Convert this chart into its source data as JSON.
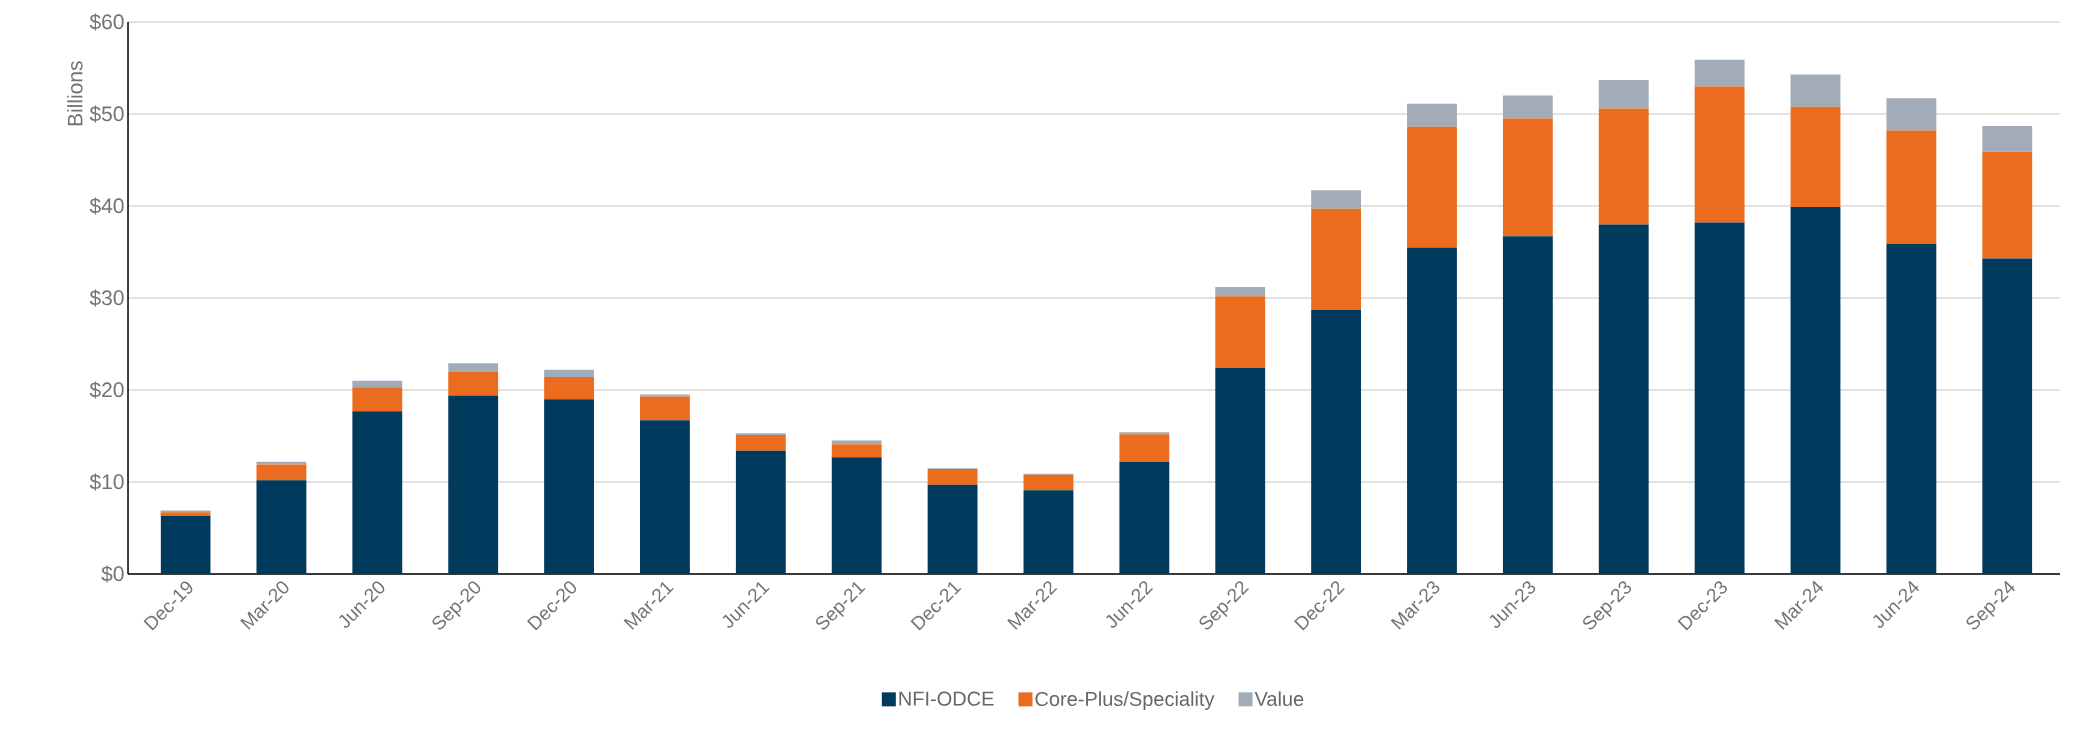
{
  "chart_data": {
    "type": "bar",
    "stacked": true,
    "ylabel": "Billions",
    "categories": [
      "Dec-19",
      "Mar-20",
      "Jun-20",
      "Sep-20",
      "Dec-20",
      "Mar-21",
      "Jun-21",
      "Sep-21",
      "Dec-21",
      "Mar-22",
      "Jun-22",
      "Sep-22",
      "Dec-22",
      "Mar-23",
      "Jun-23",
      "Sep-23",
      "Dec-23",
      "Mar-24",
      "Jun-24",
      "Sep-24"
    ],
    "series": [
      {
        "name": "NFI-ODCE",
        "color": "#003a5d",
        "values": [
          6.3,
          10.2,
          17.7,
          19.4,
          19.0,
          16.7,
          13.4,
          12.7,
          9.7,
          9.1,
          12.2,
          22.4,
          28.7,
          35.5,
          36.7,
          38.0,
          38.2,
          39.9,
          35.9,
          34.3
        ]
      },
      {
        "name": "Core-Plus/Speciality",
        "color": "#eb6b1f",
        "values": [
          0.4,
          1.7,
          2.6,
          2.6,
          2.4,
          2.6,
          1.7,
          1.4,
          1.7,
          1.7,
          3.0,
          7.8,
          11.0,
          13.1,
          12.8,
          12.6,
          14.8,
          10.9,
          12.3,
          11.6
        ]
      },
      {
        "name": "Value",
        "color": "#a2abb8",
        "values": [
          0.2,
          0.3,
          0.7,
          0.9,
          0.8,
          0.2,
          0.2,
          0.4,
          0.1,
          0.1,
          0.2,
          1.0,
          2.0,
          2.5,
          2.5,
          3.1,
          2.9,
          3.5,
          3.5,
          2.8
        ]
      }
    ],
    "ylim": [
      0,
      60
    ],
    "yticks": [
      {
        "value": 0,
        "label": "$0"
      },
      {
        "value": 10,
        "label": "$10"
      },
      {
        "value": 20,
        "label": "$20"
      },
      {
        "value": 30,
        "label": "$30"
      },
      {
        "value": 40,
        "label": "$40"
      },
      {
        "value": 50,
        "label": "$50"
      },
      {
        "value": 60,
        "label": "$60"
      }
    ],
    "grid": "y",
    "legend": "bottom"
  }
}
